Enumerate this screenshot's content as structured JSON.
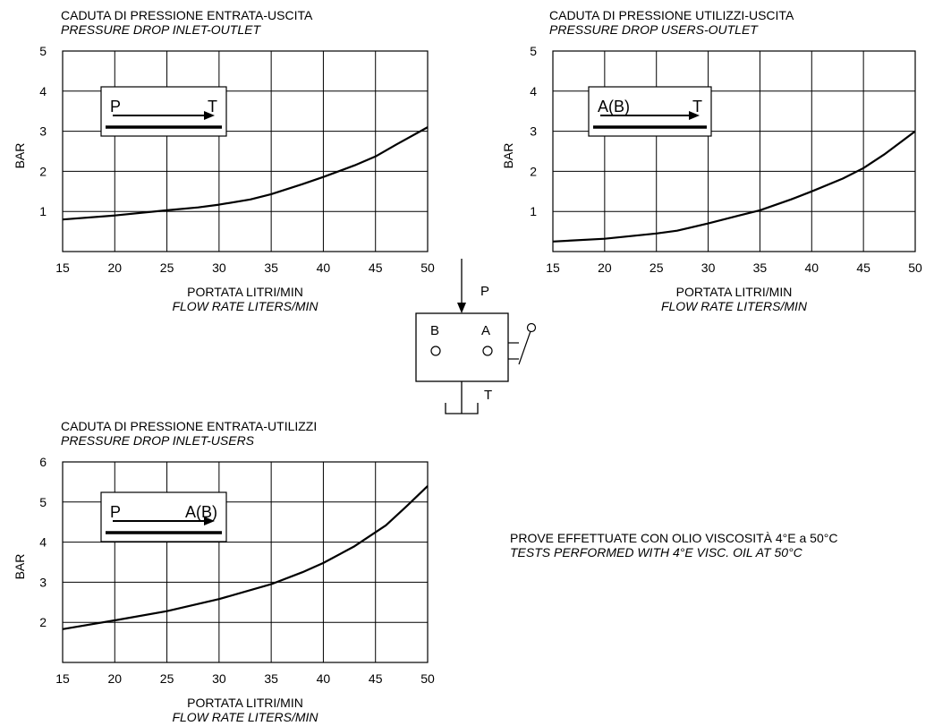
{
  "chart_data": [
    {
      "type": "line",
      "title": "CADUTA DI PRESSIONE ENTRATA-USCITA",
      "subtitle": "PRESSURE DROP INLET-OUTLET",
      "xlabel": "PORTATA LITRI/MIN",
      "xlabel_en": "FLOW RATE LITERS/MIN",
      "ylabel": "BAR",
      "xlim": [
        15,
        50
      ],
      "ylim": [
        0,
        5
      ],
      "x_ticks": [
        "15",
        "20",
        "25",
        "30",
        "35",
        "40",
        "45",
        "50"
      ],
      "y_ticks": [
        "1",
        "2",
        "3",
        "4",
        "5"
      ],
      "grid": true,
      "legend_box": {
        "from": "P",
        "to": "T"
      },
      "series": [
        {
          "x": [
            15,
            20,
            25,
            28,
            30,
            33,
            35,
            38,
            40,
            43,
            45,
            47,
            50
          ],
          "y": [
            0.8,
            0.9,
            1.03,
            1.1,
            1.17,
            1.3,
            1.43,
            1.68,
            1.86,
            2.15,
            2.37,
            2.67,
            3.1
          ]
        }
      ]
    },
    {
      "type": "line",
      "title": "CADUTA DI PRESSIONE UTILIZZI-USCITA",
      "subtitle": "PRESSURE DROP USERS-OUTLET",
      "xlabel": "PORTATA LITRI/MIN",
      "xlabel_en": "FLOW RATE LITERS/MIN",
      "ylabel": "BAR",
      "xlim": [
        15,
        50
      ],
      "ylim": [
        0,
        5
      ],
      "x_ticks": [
        "15",
        "20",
        "25",
        "30",
        "35",
        "40",
        "45",
        "50"
      ],
      "y_ticks": [
        "1",
        "2",
        "3",
        "4",
        "5"
      ],
      "grid": true,
      "legend_box": {
        "from": "A(B)",
        "to": "T"
      },
      "series": [
        {
          "x": [
            15,
            20,
            25,
            27,
            30,
            33,
            35,
            38,
            40,
            43,
            45,
            47,
            50
          ],
          "y": [
            0.25,
            0.32,
            0.45,
            0.52,
            0.7,
            0.9,
            1.03,
            1.3,
            1.5,
            1.82,
            2.08,
            2.42,
            3.0
          ]
        }
      ]
    },
    {
      "type": "line",
      "title": "CADUTA DI PRESSIONE ENTRATA-UTILIZZI",
      "subtitle": "PRESSURE DROP INLET-USERS",
      "xlabel": "PORTATA LITRI/MIN",
      "xlabel_en": "FLOW RATE LITERS/MIN",
      "ylabel": "BAR",
      "xlim": [
        15,
        50
      ],
      "ylim": [
        1,
        6
      ],
      "x_ticks": [
        "15",
        "20",
        "25",
        "30",
        "35",
        "40",
        "45",
        "50"
      ],
      "y_ticks": [
        "2",
        "3",
        "4",
        "5",
        "6"
      ],
      "grid": true,
      "legend_box": {
        "from": "P",
        "to": "A(B)"
      },
      "series": [
        {
          "x": [
            15,
            20,
            25,
            30,
            35,
            38,
            40,
            43,
            46,
            48,
            50
          ],
          "y": [
            1.83,
            2.05,
            2.28,
            2.58,
            2.95,
            3.25,
            3.48,
            3.9,
            4.42,
            4.9,
            5.4
          ]
        }
      ]
    }
  ],
  "valve_symbol": {
    "port_p": "P",
    "port_t": "T",
    "port_a": "A",
    "port_b": "B"
  },
  "note": {
    "line_it": "PROVE EFFETTUATE CON OLIO VISCOSITÀ 4°E a 50°C",
    "line_en": "TESTS PERFORMED WITH 4°E VISC. OIL  AT 50°C"
  }
}
